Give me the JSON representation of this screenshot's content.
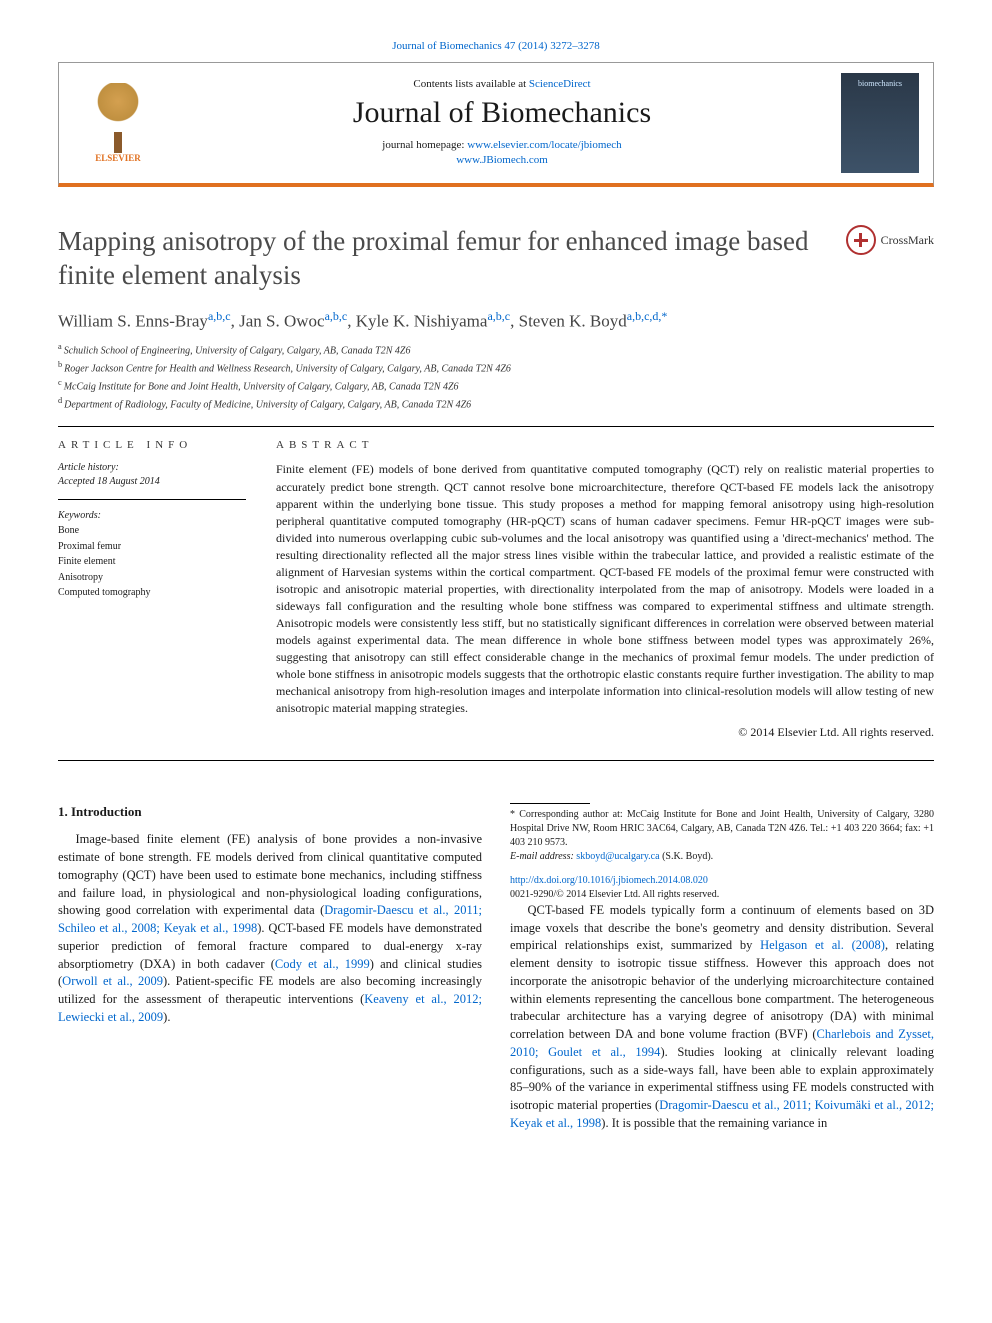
{
  "citation_line": "Journal of Biomechanics 47 (2014) 3272–3278",
  "header": {
    "contents_prefix": "Contents lists available at ",
    "contents_link": "ScienceDirect",
    "journal_name": "Journal of Biomechanics",
    "homepage_prefix": "journal homepage: ",
    "homepage_url1": "www.elsevier.com/locate/jbiomech",
    "homepage_url2": "www.JBiomech.com",
    "publisher_label": "ELSEVIER",
    "cover_label": "biomechanics"
  },
  "crossmark_label": "CrossMark",
  "title": "Mapping anisotropy of the proximal femur for enhanced image based finite element analysis",
  "authors_html": {
    "a1_name": "William S. Enns-Bray",
    "a1_aff": "a,b,c",
    "a2_name": "Jan S. Owoc",
    "a2_aff": "a,b,c",
    "a3_name": "Kyle K. Nishiyama",
    "a3_aff": "a,b,c",
    "a4_name": "Steven K. Boyd",
    "a4_aff": "a,b,c,d,",
    "star": "*"
  },
  "affiliations": [
    "Schulich School of Engineering, University of Calgary, Calgary, AB, Canada T2N 4Z6",
    "Roger Jackson Centre for Health and Wellness Research, University of Calgary, Calgary, AB, Canada T2N 4Z6",
    "McCaig Institute for Bone and Joint Health, University of Calgary, Calgary, AB, Canada T2N 4Z6",
    "Department of Radiology, Faculty of Medicine, University of Calgary, Calgary, AB, Canada T2N 4Z6"
  ],
  "aff_markers": [
    "a",
    "b",
    "c",
    "d"
  ],
  "article_info_label": "ARTICLE INFO",
  "abstract_label": "ABSTRACT",
  "history_label": "Article history:",
  "history_accepted": "Accepted 18 August 2014",
  "keywords_label": "Keywords:",
  "keywords": [
    "Bone",
    "Proximal femur",
    "Finite element",
    "Anisotropy",
    "Computed tomography"
  ],
  "abstract_text": "Finite element (FE) models of bone derived from quantitative computed tomography (QCT) rely on realistic material properties to accurately predict bone strength. QCT cannot resolve bone microarchitecture, therefore QCT-based FE models lack the anisotropy apparent within the underlying bone tissue. This study proposes a method for mapping femoral anisotropy using high-resolution peripheral quantitative computed tomography (HR-pQCT) scans of human cadaver specimens. Femur HR-pQCT images were sub-divided into numerous overlapping cubic sub-volumes and the local anisotropy was quantified using a 'direct-mechanics' method. The resulting directionality reflected all the major stress lines visible within the trabecular lattice, and provided a realistic estimate of the alignment of Harvesian systems within the cortical compartment. QCT-based FE models of the proximal femur were constructed with isotropic and anisotropic material properties, with directionality interpolated from the map of anisotropy. Models were loaded in a sideways fall configuration and the resulting whole bone stiffness was compared to experimental stiffness and ultimate strength. Anisotropic models were consistently less stiff, but no statistically significant differences in correlation were observed between material models against experimental data. The mean difference in whole bone stiffness between model types was approximately 26%, suggesting that anisotropy can still effect considerable change in the mechanics of proximal femur models. The under prediction of whole bone stiffness in anisotropic models suggests that the orthotropic elastic constants require further investigation. The ability to map mechanical anisotropy from high-resolution images and interpolate information into clinical-resolution models will allow testing of new anisotropic material mapping strategies.",
  "copyright": "© 2014 Elsevier Ltd. All rights reserved.",
  "intro_heading": "1.  Introduction",
  "intro_p1_a": "Image-based finite element (FE) analysis of bone provides a non-invasive estimate of bone strength. FE models derived from clinical quantitative computed tomography (QCT) have been used to estimate bone mechanics, including stiffness and failure load, in physiological and non-physiological loading configurations, showing good correlation with experimental data (",
  "intro_p1_link1": "Dragomir-Daescu et al., 2011; Schileo et al., 2008; Keyak et al., 1998",
  "intro_p1_b": "). QCT-based FE models have demonstrated superior prediction of femoral fracture compared to dual-energy x-ray absorptiometry (DXA) in both cadaver (",
  "intro_p1_link2": "Cody et al., 1999",
  "intro_p1_c": ") and clinical studies (",
  "intro_p1_link3": "Orwoll et al., 2009",
  "intro_p1_d": "). Patient-specific FE models are also becoming increasingly utilized for the assessment of therapeutic interventions (",
  "intro_p1_link4": "Keaveny et al., 2012; Lewiecki et al., 2009",
  "intro_p1_e": ").",
  "intro_p2_a": "QCT-based FE models typically form a continuum of elements based on 3D image voxels that describe the bone's geometry and density distribution. Several empirical relationships exist, summarized by ",
  "intro_p2_link1": "Helgason et al. (2008)",
  "intro_p2_b": ", relating element density to isotropic tissue stiffness. However this approach does not incorporate the anisotropic behavior of the underlying microarchitecture contained within elements representing the cancellous bone compartment. The heterogeneous trabecular architecture has a varying degree of anisotropy (DA) with minimal correlation between DA and bone volume fraction (BVF) (",
  "intro_p2_link2": "Charlebois and Zysset, 2010; Goulet et al., 1994",
  "intro_p2_c": "). Studies looking at clinically relevant loading configurations, such as a side-ways fall, have been able to explain approximately 85–90% of the variance in experimental stiffness using FE models constructed with isotropic material properties (",
  "intro_p2_link3": "Dragomir-Daescu et al., 2011; Koivumäki et al., 2012; Keyak et al., 1998",
  "intro_p2_d": "). It is possible that the remaining variance in",
  "corr_note_a": "* Corresponding author at: McCaig Institute for Bone and Joint Health, University of Calgary, 3280 Hospital Drive NW, Room HRIC 3AC64, Calgary, AB, Canada T2N 4Z6. Tel.: +1 403 220 3664; fax: +1 403 210 9573.",
  "corr_email_label": "E-mail address: ",
  "corr_email": "skboyd@ucalgary.ca",
  "corr_email_suffix": " (S.K. Boyd).",
  "doi_link": "http://dx.doi.org/10.1016/j.jbiomech.2014.08.020",
  "issn_line": "0021-9290/© 2014 Elsevier Ltd. All rights reserved.",
  "colors": {
    "link": "#0066cc",
    "accent": "#e07020",
    "text": "#1a1a1a"
  }
}
